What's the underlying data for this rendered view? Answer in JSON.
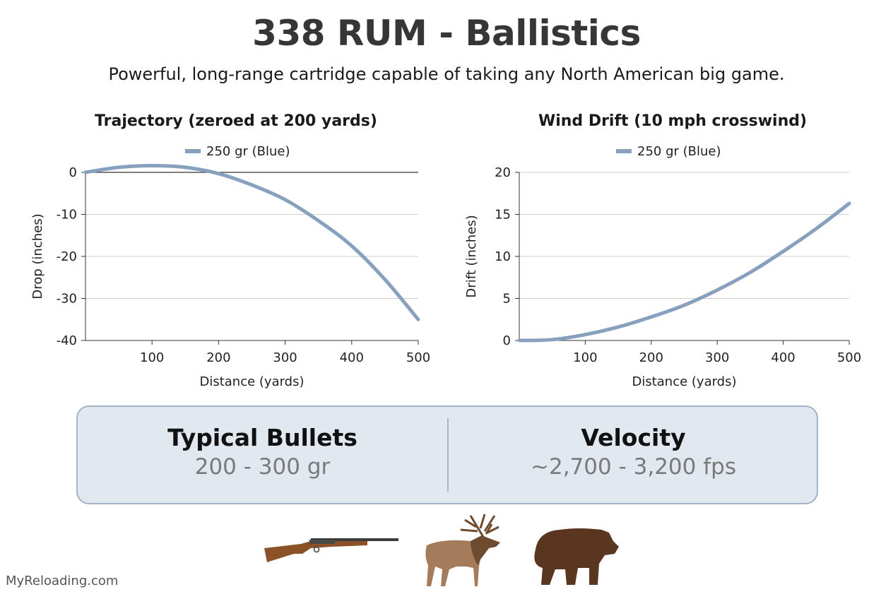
{
  "header": {
    "title": "338 RUM - Ballistics",
    "subtitle": "Powerful, long-range cartridge capable of taking any North American big game."
  },
  "chart_data": [
    {
      "type": "line",
      "title": "Trajectory (zeroed at 200 yards)",
      "xlabel": "Distance (yards)",
      "ylabel": "Drop (inches)",
      "xlim": [
        0,
        500
      ],
      "ylim": [
        -40,
        0
      ],
      "xticks": [
        100,
        200,
        300,
        400,
        500
      ],
      "yticks": [
        0,
        -10,
        -20,
        -30,
        -40
      ],
      "grid": true,
      "legend": "top-center",
      "series": [
        {
          "name": "250 gr (Blue)",
          "color": "#87a0bd",
          "x": [
            0,
            50,
            100,
            150,
            200,
            250,
            300,
            350,
            400,
            450,
            500
          ],
          "y": [
            0,
            1.2,
            1.6,
            1.2,
            -0.3,
            -3,
            -6.5,
            -11.5,
            -17.5,
            -25.5,
            -35
          ]
        }
      ]
    },
    {
      "type": "line",
      "title": "Wind Drift (10 mph crosswind)",
      "xlabel": "Distance (yards)",
      "ylabel": "Drift (inches)",
      "xlim": [
        0,
        500
      ],
      "ylim": [
        0,
        20
      ],
      "xticks": [
        100,
        200,
        300,
        400,
        500
      ],
      "yticks": [
        0,
        5,
        10,
        15,
        20
      ],
      "grid": true,
      "legend": "top-center",
      "series": [
        {
          "name": "250 gr (Blue)",
          "color": "#87a0bd",
          "x": [
            0,
            50,
            100,
            150,
            200,
            250,
            300,
            350,
            400,
            450,
            500
          ],
          "y": [
            0,
            0.1,
            0.7,
            1.6,
            2.8,
            4.2,
            6.0,
            8.1,
            10.6,
            13.3,
            16.3
          ]
        }
      ]
    }
  ],
  "stats": [
    {
      "label": "Typical Bullets",
      "value": "200 - 300 gr"
    },
    {
      "label": "Velocity",
      "value": "~2,700 - 3,200 fps"
    }
  ],
  "icons": [
    "rifle-icon",
    "elk-icon",
    "bear-icon"
  ],
  "footer": "MyReloading.com"
}
